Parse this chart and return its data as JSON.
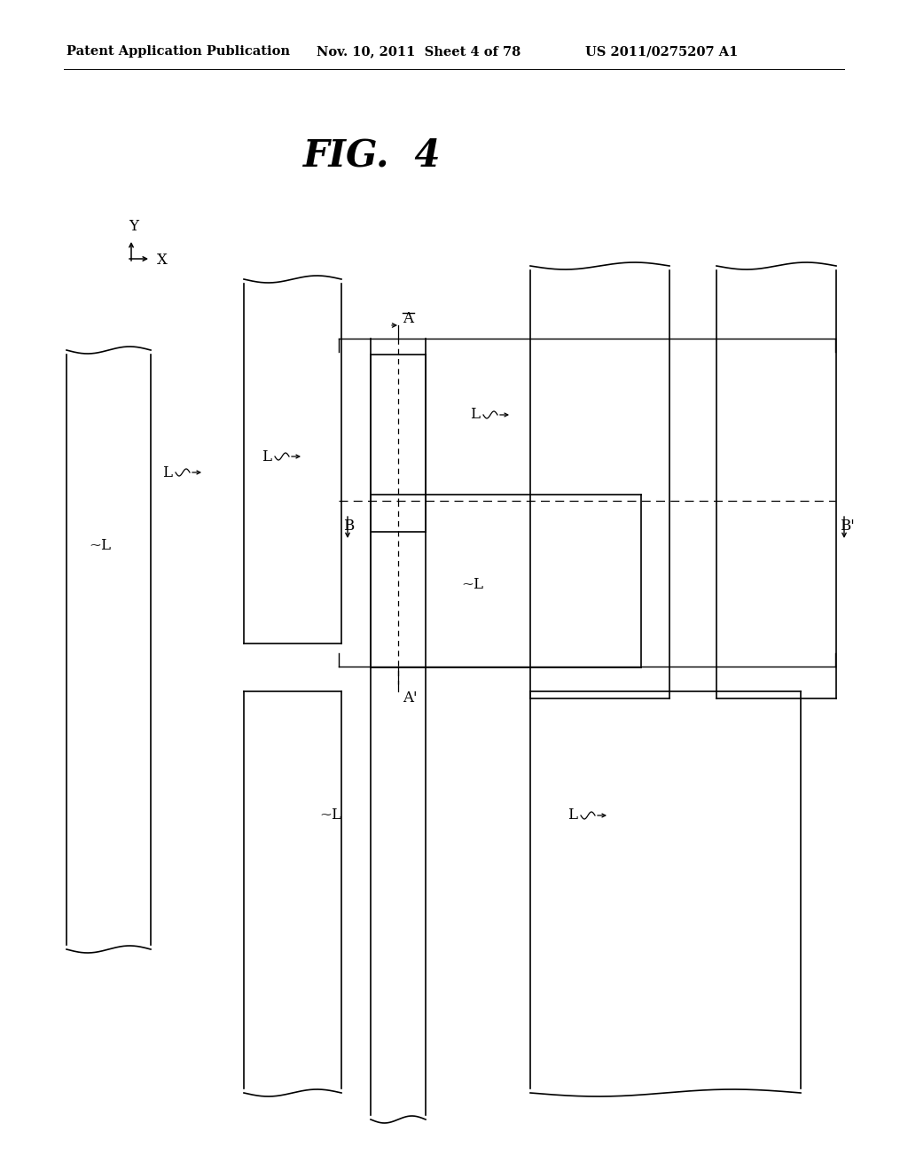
{
  "title": "FIG.  4",
  "header_left": "Patent Application Publication",
  "header_mid": "Nov. 10, 2011  Sheet 4 of 78",
  "header_right": "US 2011/0275207 A1",
  "bg_color": "#ffffff",
  "fig_title_fontsize": 30,
  "header_fontsize": 10.5
}
